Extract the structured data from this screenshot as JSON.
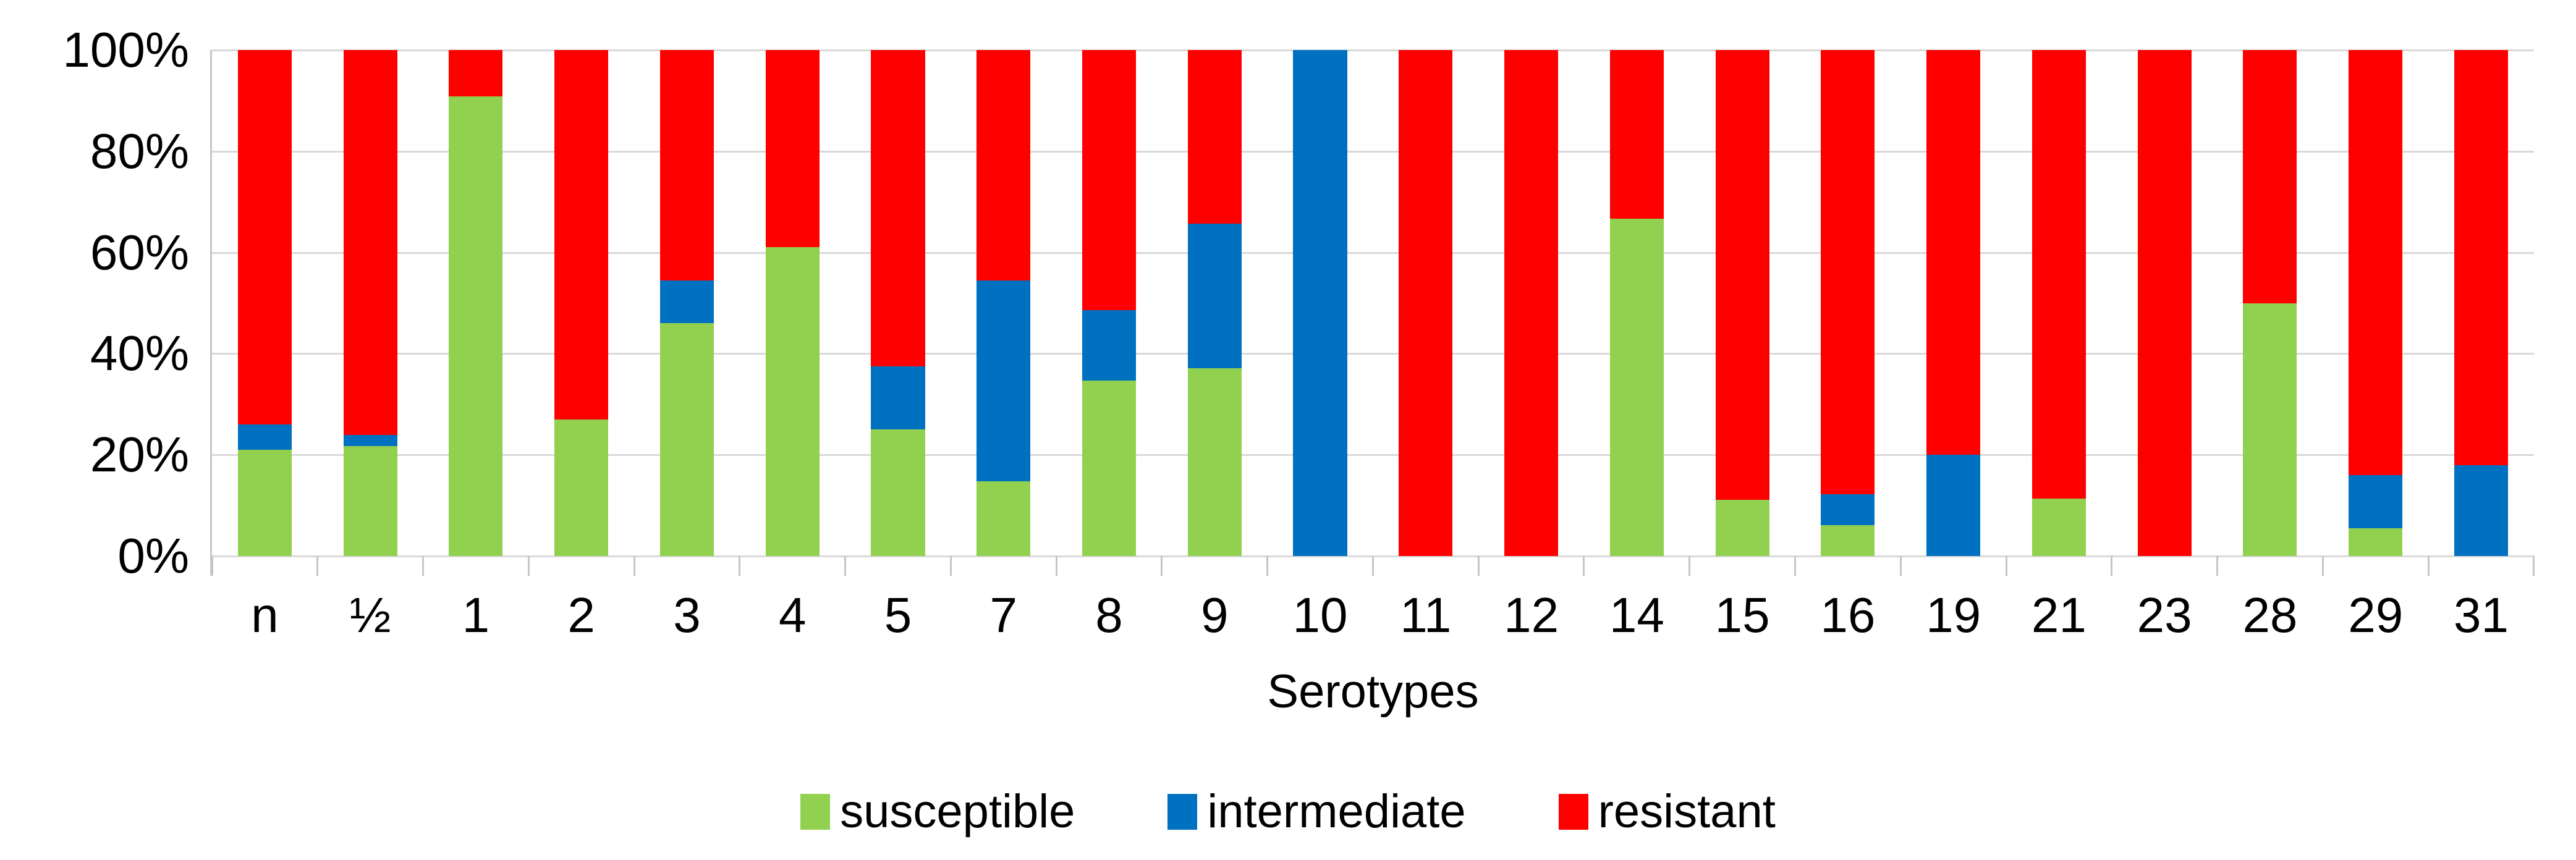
{
  "chart_data": {
    "type": "bar",
    "variant": "stacked-100-percent",
    "title": "",
    "xlabel": "Serotypes",
    "ylabel": "",
    "ylim": [
      0,
      100
    ],
    "grid": true,
    "legend_position": "bottom",
    "y_ticks": [
      "100%",
      "80%",
      "60%",
      "40%",
      "20%",
      "0%"
    ],
    "y_tick_values": [
      100,
      80,
      60,
      40,
      20,
      0
    ],
    "categories": [
      "n",
      "½",
      "1",
      "2",
      "3",
      "4",
      "5",
      "7",
      "8",
      "9",
      "10",
      "11",
      "12",
      "14",
      "15",
      "16",
      "19",
      "21",
      "23",
      "28",
      "29",
      "31"
    ],
    "series": [
      {
        "name": "susceptible",
        "color": "#92D050",
        "values": [
          21.0,
          21.7,
          90.9,
          27.0,
          46.0,
          61.0,
          25.0,
          14.8,
          34.7,
          37.1,
          0,
          0,
          0,
          66.7,
          11.1,
          6.1,
          0,
          11.4,
          0,
          50.0,
          5.5,
          0
        ]
      },
      {
        "name": "intermediate",
        "color": "#0070C0",
        "values": [
          5.0,
          2.2,
          0,
          0,
          8.5,
          0,
          12.5,
          39.7,
          13.9,
          28.6,
          100,
          0,
          0,
          0,
          0,
          6.1,
          20.0,
          0,
          0,
          0,
          10.5,
          18.0
        ]
      },
      {
        "name": "resistant",
        "color": "#FF0000",
        "values": [
          74.0,
          76.1,
          9.1,
          73.0,
          45.5,
          39.0,
          62.5,
          45.5,
          51.4,
          34.3,
          0,
          100,
          100,
          33.3,
          88.9,
          87.8,
          80.0,
          88.6,
          100,
          50.0,
          84.0,
          82.0
        ]
      }
    ]
  },
  "style": {
    "gridline_color": "#D9D9D9",
    "axis_line_color": "#C6C6C6",
    "text_color": "#000000",
    "background_color": "#FFFFFF"
  }
}
